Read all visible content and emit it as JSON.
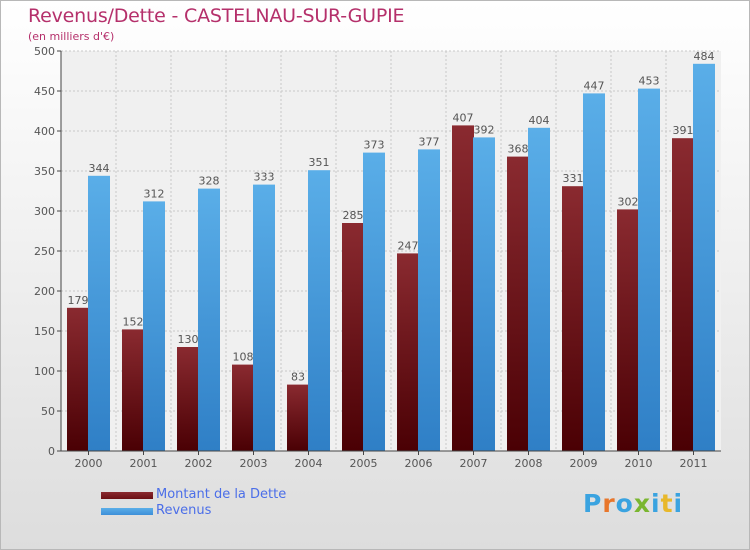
{
  "header": {
    "title": "Revenus/Dette - CASTELNAU-SUR-GUPIE",
    "subtitle": "(en milliers d'€)"
  },
  "legend": {
    "items": [
      {
        "label": "Montant de la Dette",
        "color": "#6b0f14"
      },
      {
        "label": "Revenus",
        "color": "#3d8fd8"
      }
    ]
  },
  "logo": {
    "text": "Proxiti",
    "letter_colors": [
      "#3aa3e0",
      "#e8762b",
      "#3aa3e0",
      "#7ab630",
      "#3aa3e0",
      "#e8b82b",
      "#3aa3e0"
    ]
  },
  "chart_data": {
    "type": "bar",
    "title": "Revenus/Dette - CASTELNAU-SUR-GUPIE",
    "ylabel": "(en milliers d'€)",
    "categories": [
      "2000",
      "2001",
      "2002",
      "2003",
      "2004",
      "2005",
      "2006",
      "2007",
      "2008",
      "2009",
      "2010",
      "2011"
    ],
    "series": [
      {
        "name": "Montant de la Dette",
        "color": "#6b0f14",
        "values": [
          179,
          152,
          130,
          108,
          83,
          285,
          247,
          407,
          368,
          331,
          302,
          391
        ]
      },
      {
        "name": "Revenus",
        "color": "#3d8fd8",
        "values": [
          344,
          312,
          328,
          333,
          351,
          373,
          377,
          392,
          404,
          447,
          453,
          484
        ]
      }
    ],
    "ylim": [
      0,
      500
    ],
    "yticks": [
      "0",
      "50",
      "100",
      "150",
      "200",
      "250",
      "300",
      "350",
      "400",
      "450",
      "500"
    ],
    "grid": true,
    "legend_position": "bottom-left"
  }
}
